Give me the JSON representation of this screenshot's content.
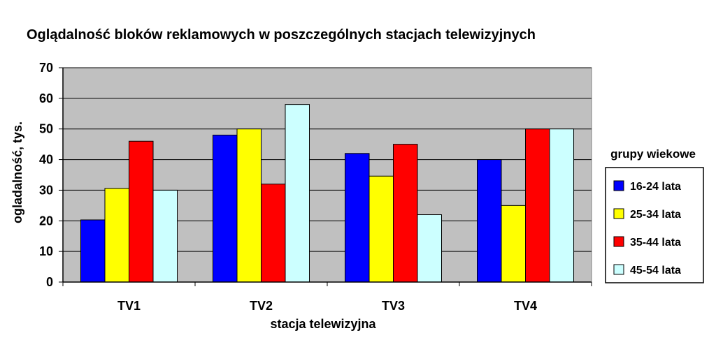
{
  "chart_data": {
    "type": "bar",
    "title": "Oglądalność bloków reklamowych w poszczególnych stacjach telewizyjnych",
    "xlabel": "stacja telewizyjna",
    "ylabel": "ogladalność, tys.",
    "categories": [
      "TV1",
      "TV2",
      "TV3",
      "TV4"
    ],
    "ylim": [
      0,
      70
    ],
    "yticks": [
      "0",
      "10",
      "20",
      "30",
      "40",
      "50",
      "60",
      "70"
    ],
    "grid": true,
    "legend_title": "grupy wiekowe",
    "legend_position": "right",
    "series": [
      {
        "name": "16-24 lata",
        "color": "#0000ff",
        "values": [
          20.3,
          48,
          42,
          40
        ]
      },
      {
        "name": "25-34 lata",
        "color": "#ffff00",
        "values": [
          30.6,
          50,
          34.6,
          25
        ]
      },
      {
        "name": "35-44 lata",
        "color": "#ff0000",
        "values": [
          46,
          32,
          45,
          50
        ]
      },
      {
        "name": "45-54 lata",
        "color": "#ccffff",
        "values": [
          30,
          58,
          22,
          50
        ]
      }
    ],
    "plot_background": "#c0c0c0"
  }
}
